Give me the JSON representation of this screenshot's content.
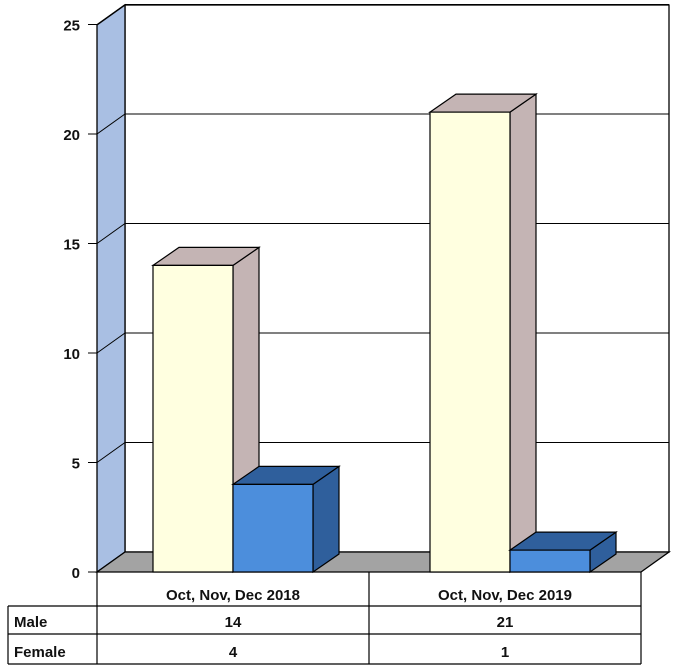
{
  "chart_data": {
    "type": "bar",
    "categories": [
      "Oct, Nov, Dec 2018",
      "Oct, Nov, Dec 2019"
    ],
    "series": [
      {
        "name": "Male",
        "values": [
          14,
          21
        ],
        "color": "#FFFFE0",
        "side_color": "#C4B4B4"
      },
      {
        "name": "Female",
        "values": [
          4,
          1
        ],
        "color": "#4C8EDC",
        "side_color": "#2F5F9C"
      }
    ],
    "ylim": [
      0,
      25
    ],
    "y_ticks": [
      "0",
      "5",
      "10",
      "15",
      "20",
      "25"
    ],
    "grid": true,
    "legend": "data table below chart",
    "title": "",
    "xlabel": "",
    "ylabel": "",
    "table": {
      "rows": [
        {
          "label": "Male",
          "values": [
            "14",
            "21"
          ]
        },
        {
          "label": "Female",
          "values": [
            "4",
            "1"
          ]
        }
      ]
    }
  }
}
